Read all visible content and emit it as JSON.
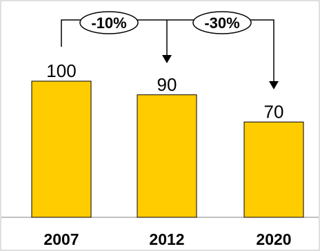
{
  "chart_data": {
    "type": "bar",
    "categories": [
      "2007",
      "2012",
      "2020"
    ],
    "values": [
      100,
      90,
      70
    ],
    "value_labels": [
      "100",
      "90",
      "70"
    ],
    "ylim": [
      0,
      100
    ],
    "bar_color": "#ffcc00",
    "grid": false,
    "annotations": [
      {
        "from": "2007",
        "to": "2012",
        "label": "-10%"
      },
      {
        "from": "2007",
        "to": "2020",
        "label": "-30%"
      }
    ]
  }
}
